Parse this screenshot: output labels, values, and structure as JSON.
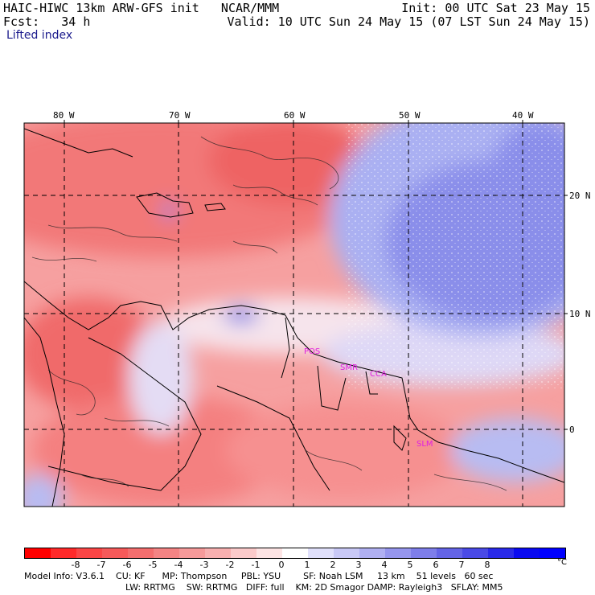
{
  "header": {
    "line1_left": "HAIC-HIWC 13km ARW-GFS init   NCAR/MMM",
    "line2_left": "Fcst:   34 h",
    "line1_right": "Init: 00 UTC Sat 23 May 15",
    "line2_right": "Valid: 10 UTC Sun 24 May 15 (07 LST Sun 24 May 15)",
    "field": "Lifted index"
  },
  "map": {
    "lon_labels": [
      "80 W",
      "70 W",
      "60 W",
      "50 W",
      "40 W"
    ],
    "lat_labels": [
      "20 N",
      "10 N",
      "0"
    ],
    "stations": [
      "POS",
      "SMR",
      "CCA",
      "SLM"
    ],
    "colors": {
      "strong_red": "#ec5050",
      "mid_red": "#f47a7a",
      "light_red": "#f8a8a8",
      "pale": "#fbe0e0",
      "pale_blue": "#dcdcfa",
      "light_blue": "#b4b4f4",
      "mid_blue": "#8c8cec",
      "strong_blue": "#6e6ee4"
    }
  },
  "colorbar": {
    "ticks": [
      "-8",
      "-7",
      "-6",
      "-5",
      "-4",
      "-3",
      "-2",
      "-1",
      "0",
      "1",
      "2",
      "3",
      "4",
      "5",
      "6",
      "7",
      "8"
    ],
    "unit": "°C",
    "colors": [
      "#ff0000",
      "#ff2a2a",
      "#fb4646",
      "#f65a5a",
      "#f46e6e",
      "#f48484",
      "#f69a9a",
      "#f8b0b0",
      "#fbcaca",
      "#fde4e4",
      "#ffffff",
      "#e0e0fb",
      "#c8c8f6",
      "#b0b0f2",
      "#9696ee",
      "#7e7eea",
      "#6464e6",
      "#4a4ae6",
      "#2a2ae8",
      "#0a0af0",
      "#0000ff"
    ]
  },
  "model_info": {
    "line1": "Model Info: V3.6.1    CU: KF      MP: Thompson     PBL: YSU        SF: Noah LSM     13 km    51 levels   60 sec",
    "line2": "LW: RRTMG    SW: RRTMG   DIFF: full    KM: 2D Smagor DAMP: Rayleigh3   SFLAY: MM5"
  }
}
